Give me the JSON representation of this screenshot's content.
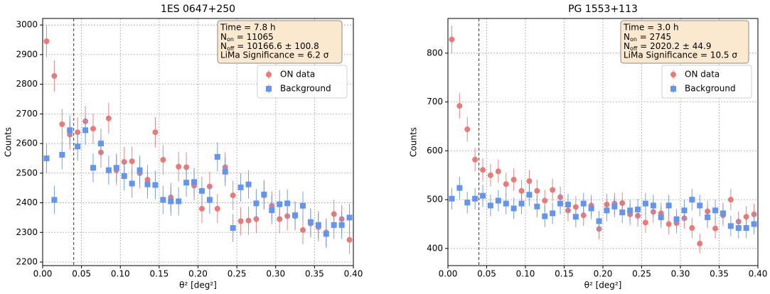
{
  "chart_data": [
    {
      "type": "scatter",
      "title": "1ES 0647+250",
      "xlabel": "θ² [deg²]",
      "ylabel": "Counts",
      "grid": true,
      "legend": "upper right",
      "cut": 0.04,
      "annotation": [
        "Time = 7.8 h",
        {
          "main": "N",
          "sub": "on",
          "rest": " = 11065"
        },
        {
          "main": "N",
          "sub": "off",
          "rest": " = 10166.6 ± 100.8"
        },
        "LiMa Significance = 6.2 σ"
      ],
      "xlim": [
        0,
        0.4
      ],
      "ylim": [
        2188,
        3022
      ],
      "xticks": [
        {
          "value": 0,
          "label": "0.00"
        },
        {
          "value": 0.05,
          "label": "0.05"
        },
        {
          "value": 0.1,
          "label": "0.10"
        },
        {
          "value": 0.15,
          "label": "0.15"
        },
        {
          "value": 0.2,
          "label": "0.20"
        },
        {
          "value": 0.25,
          "label": "0.25"
        },
        {
          "value": 0.3,
          "label": "0.30"
        },
        {
          "value": 0.35,
          "label": "0.35"
        },
        {
          "value": 0.4,
          "label": "0.40"
        }
      ],
      "yticks": [
        2200,
        2300,
        2400,
        2500,
        2600,
        2700,
        2800,
        2900,
        3000
      ],
      "x": [
        0.005,
        0.015,
        0.025,
        0.035,
        0.045,
        0.055,
        0.065,
        0.075,
        0.085,
        0.095,
        0.105,
        0.115,
        0.125,
        0.135,
        0.145,
        0.155,
        0.165,
        0.175,
        0.185,
        0.195,
        0.205,
        0.215,
        0.225,
        0.235,
        0.245,
        0.255,
        0.265,
        0.275,
        0.285,
        0.295,
        0.305,
        0.315,
        0.325,
        0.335,
        0.345,
        0.355,
        0.365,
        0.375,
        0.385,
        0.395
      ],
      "series": [
        {
          "name": "ON data",
          "color": "#e87a7a",
          "marker": "circle",
          "values": [
            2945,
            2828,
            2665,
            2630,
            2638,
            2675,
            2650,
            2570,
            2685,
            2510,
            2538,
            2540,
            2500,
            2478,
            2638,
            2545,
            2418,
            2522,
            2520,
            2458,
            2380,
            2455,
            2380,
            2520,
            2425,
            2338,
            2340,
            2345,
            2425,
            2390,
            2345,
            2355,
            2355,
            2308,
            2330,
            2318,
            2300,
            2362,
            2345,
            2275
          ],
          "errors": [
            54,
            53,
            52,
            51,
            51,
            52,
            51,
            51,
            52,
            50,
            50,
            50,
            50,
            50,
            51,
            50,
            49,
            50,
            50,
            50,
            49,
            50,
            49,
            50,
            49,
            48,
            48,
            48,
            49,
            49,
            48,
            49,
            49,
            48,
            48,
            48,
            48,
            49,
            48,
            48
          ]
        },
        {
          "name": "Background",
          "color": "#6495ed",
          "marker": "square",
          "values": [
            2550,
            2410,
            2562,
            2645,
            2590,
            2645,
            2518,
            2600,
            2510,
            2518,
            2490,
            2465,
            2510,
            2462,
            2460,
            2410,
            2405,
            2405,
            2468,
            2470,
            2440,
            2410,
            2555,
            2505,
            2315,
            2452,
            2462,
            2398,
            2428,
            2375,
            2395,
            2398,
            2358,
            2390,
            2335,
            2325,
            2295,
            2325,
            2325,
            2350
          ],
          "errors": [
            49,
            48,
            49,
            50,
            49,
            50,
            49,
            50,
            49,
            49,
            49,
            48,
            49,
            48,
            48,
            48,
            48,
            48,
            48,
            48,
            48,
            48,
            49,
            49,
            47,
            48,
            48,
            48,
            48,
            47,
            48,
            48,
            47,
            48,
            47,
            47,
            47,
            47,
            47,
            47
          ]
        }
      ]
    },
    {
      "type": "scatter",
      "title": "PG 1553+113",
      "xlabel": "θ² [deg²]",
      "ylabel": "Counts",
      "grid": true,
      "legend": "upper right",
      "cut": 0.04,
      "annotation": [
        "Time = 3.0 h",
        {
          "main": "N",
          "sub": "on",
          "rest": " = 2745"
        },
        {
          "main": "N",
          "sub": "off",
          "rest": " = 2020.2 ± 44.9"
        },
        "LiMa Significance = 10.5 σ"
      ],
      "xlim": [
        0,
        0.4
      ],
      "ylim": [
        365,
        871
      ],
      "xticks": [
        {
          "value": 0,
          "label": "0.00"
        },
        {
          "value": 0.05,
          "label": "0.05"
        },
        {
          "value": 0.1,
          "label": "0.10"
        },
        {
          "value": 0.15,
          "label": "0.15"
        },
        {
          "value": 0.2,
          "label": "0.20"
        },
        {
          "value": 0.25,
          "label": "0.25"
        },
        {
          "value": 0.3,
          "label": "0.30"
        },
        {
          "value": 0.35,
          "label": "0.35"
        },
        {
          "value": 0.4,
          "label": "0.40"
        }
      ],
      "yticks": [
        400,
        500,
        600,
        700,
        800
      ],
      "x": [
        0.005,
        0.015,
        0.025,
        0.035,
        0.045,
        0.055,
        0.065,
        0.075,
        0.085,
        0.095,
        0.105,
        0.115,
        0.125,
        0.135,
        0.145,
        0.155,
        0.165,
        0.175,
        0.185,
        0.195,
        0.205,
        0.215,
        0.225,
        0.235,
        0.245,
        0.255,
        0.265,
        0.275,
        0.285,
        0.295,
        0.305,
        0.315,
        0.325,
        0.335,
        0.345,
        0.355,
        0.365,
        0.375,
        0.385,
        0.395
      ],
      "series": [
        {
          "name": "ON data",
          "color": "#e87a7a",
          "marker": "circle",
          "values": [
            828,
            692,
            644,
            582,
            561,
            550,
            558,
            532,
            541,
            518,
            538,
            518,
            498,
            520,
            505,
            478,
            485,
            468,
            488,
            440,
            490,
            492,
            493,
            470,
            467,
            453,
            475,
            472,
            450,
            452,
            462,
            442,
            410,
            476,
            441,
            468,
            500,
            455,
            465,
            470
          ],
          "errors": [
            29,
            26,
            25,
            24,
            24,
            23,
            24,
            23,
            23,
            23,
            23,
            23,
            22,
            23,
            22,
            22,
            22,
            22,
            22,
            21,
            22,
            22,
            22,
            22,
            22,
            21,
            22,
            22,
            21,
            21,
            21,
            21,
            20,
            22,
            21,
            22,
            22,
            21,
            22,
            22
          ]
        },
        {
          "name": "Background",
          "color": "#6495ed",
          "marker": "square",
          "values": [
            502,
            524,
            494,
            502,
            508,
            488,
            498,
            492,
            482,
            492,
            510,
            486,
            466,
            472,
            492,
            490,
            465,
            492,
            482,
            456,
            478,
            486,
            474,
            478,
            480,
            492,
            488,
            464,
            488,
            460,
            478,
            500,
            488,
            464,
            478,
            472,
            446,
            442,
            442,
            450
          ],
          "errors": [
            22,
            23,
            22,
            22,
            23,
            22,
            22,
            22,
            22,
            22,
            23,
            22,
            22,
            22,
            22,
            22,
            22,
            22,
            22,
            21,
            22,
            22,
            22,
            22,
            22,
            22,
            22,
            22,
            22,
            21,
            22,
            22,
            22,
            22,
            22,
            22,
            21,
            21,
            21,
            21
          ]
        }
      ]
    }
  ]
}
